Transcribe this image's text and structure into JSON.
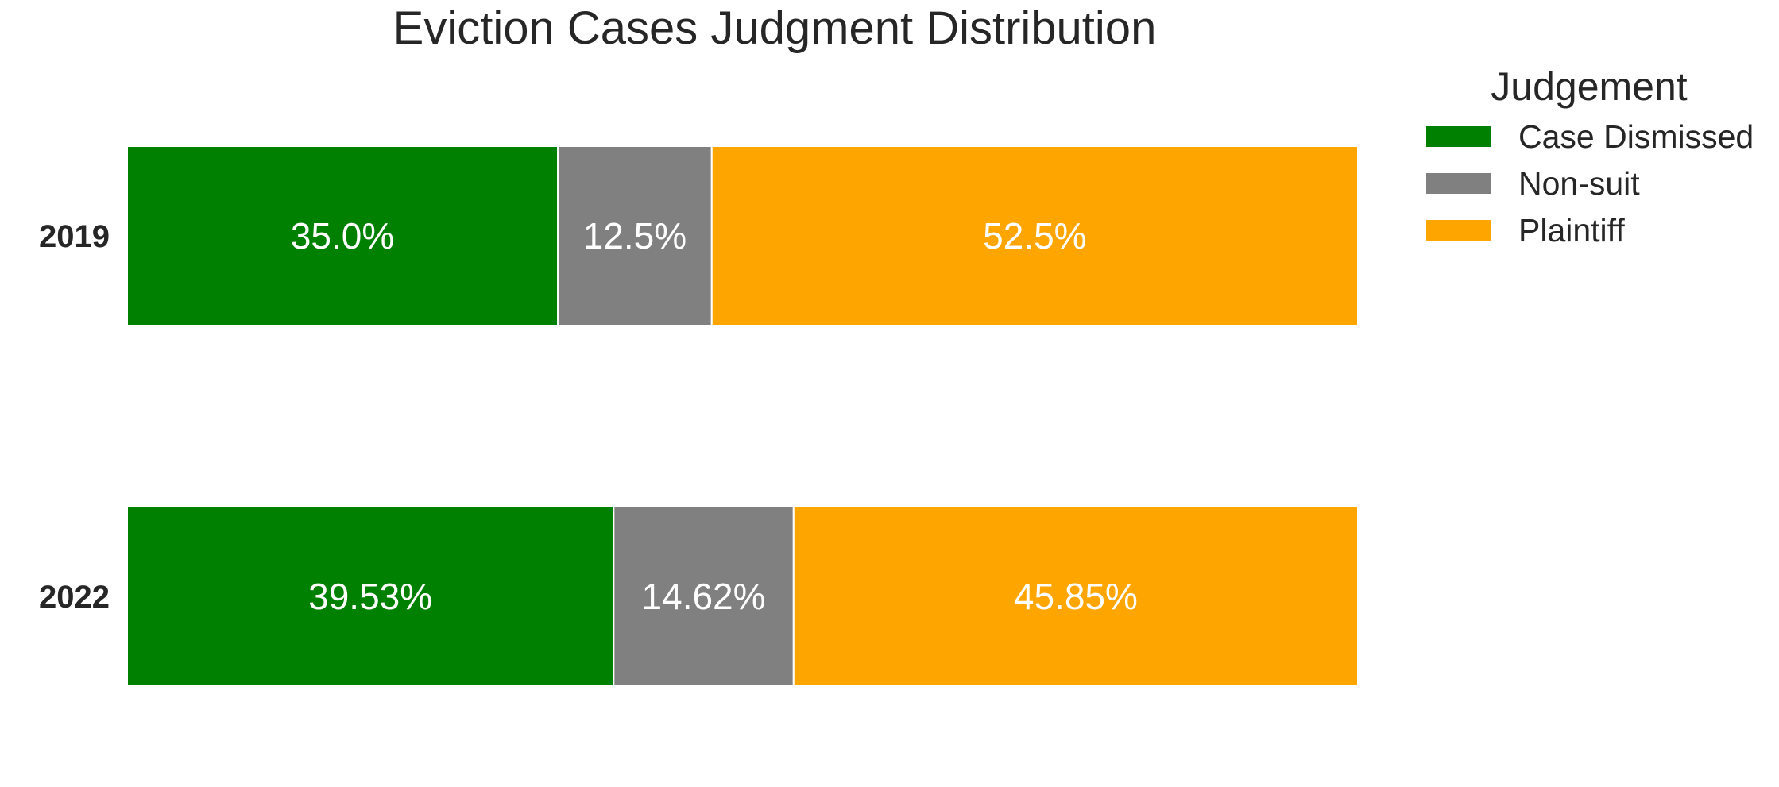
{
  "chart_data": {
    "type": "bar",
    "orientation": "horizontal",
    "stacked": true,
    "title": "Eviction Cases Judgment Distribution",
    "xlabel": "",
    "ylabel": "",
    "categories": [
      "2019",
      "2022"
    ],
    "xlim": [
      0,
      100
    ],
    "grid": false,
    "legend": {
      "title": "Judgement",
      "placement": "outside-top-right"
    },
    "series": [
      {
        "name": "Case Dismissed",
        "color": "#008000",
        "values": [
          35.0,
          39.53
        ],
        "labels": [
          "35.0%",
          "39.53%"
        ]
      },
      {
        "name": "Non-suit",
        "color": "#808080",
        "values": [
          12.5,
          14.62
        ],
        "labels": [
          "12.5%",
          "14.62%"
        ]
      },
      {
        "name": "Plaintiff",
        "color": "#FFA500",
        "values": [
          52.5,
          45.85
        ],
        "labels": [
          "52.5%",
          "45.85%"
        ]
      }
    ]
  }
}
